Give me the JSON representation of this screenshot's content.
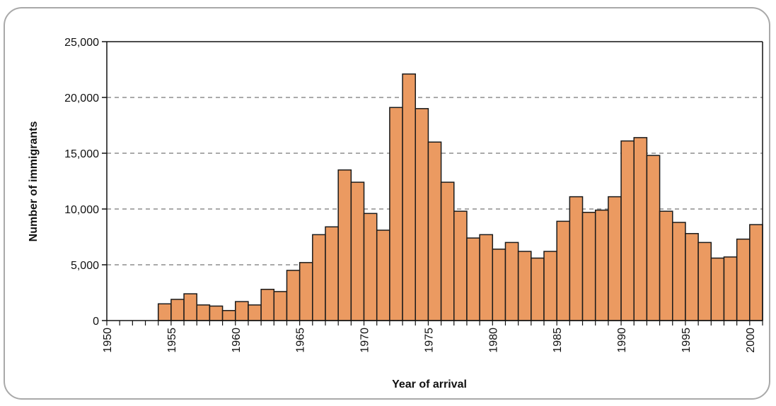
{
  "chart_data": {
    "type": "bar",
    "title": "",
    "xlabel": "Year of arrival",
    "ylabel": "Number of immigrants",
    "ylim": [
      0,
      25000
    ],
    "xlim": [
      1950,
      2001
    ],
    "grid": true,
    "y_ticks": [
      0,
      5000,
      10000,
      15000,
      20000,
      25000
    ],
    "y_tick_labels": [
      "0",
      "5,000",
      "10,000",
      "15,000",
      "20,000",
      "25,000"
    ],
    "x_tick_labels": [
      "1950",
      "1955",
      "1960",
      "1965",
      "1970",
      "1975",
      "1980",
      "1985",
      "1990",
      "1995",
      "2000"
    ],
    "colors": {
      "bar": "#eb9a61",
      "bar_edge": "#1a1a1a",
      "grid": "#555555"
    },
    "categories": [
      1955,
      1956,
      1957,
      1958,
      1959,
      1960,
      1961,
      1962,
      1963,
      1964,
      1965,
      1966,
      1967,
      1968,
      1969,
      1970,
      1971,
      1972,
      1973,
      1974,
      1975,
      1976,
      1977,
      1978,
      1979,
      1980,
      1981,
      1982,
      1983,
      1984,
      1985,
      1986,
      1987,
      1988,
      1989,
      1990,
      1991,
      1992,
      1993,
      1994,
      1995,
      1996,
      1997,
      1998,
      1999,
      2000,
      2001
    ],
    "values": [
      1500,
      1900,
      2400,
      1400,
      1300,
      900,
      1700,
      1400,
      2800,
      2600,
      4500,
      5200,
      7700,
      8400,
      13500,
      12400,
      9600,
      8100,
      19100,
      22100,
      19000,
      16000,
      12400,
      9800,
      7400,
      7700,
      6400,
      7000,
      6200,
      5600,
      6200,
      8900,
      11100,
      9700,
      9900,
      11100,
      16100,
      16400,
      14800,
      9800,
      8800,
      7800,
      7000,
      5600,
      5700,
      7300,
      8600
    ]
  }
}
